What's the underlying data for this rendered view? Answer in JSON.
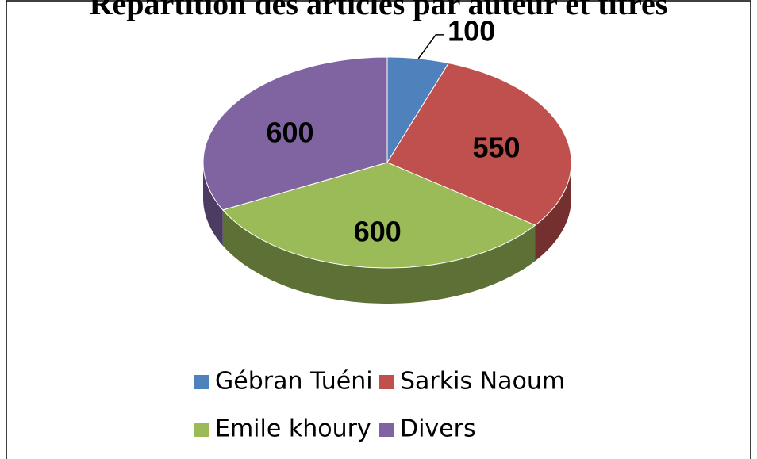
{
  "chart_data": {
    "type": "pie",
    "title": "Répartition des articles par auteur et titres",
    "categories": [
      "Gébran Tuéni",
      "Sarkis Naoum",
      "Emile khoury",
      "Divers"
    ],
    "values": [
      100,
      550,
      600,
      600
    ],
    "colors": [
      "#4f81bd",
      "#c0504d",
      "#9bbb59",
      "#8064a2"
    ],
    "legend": "bottom"
  }
}
